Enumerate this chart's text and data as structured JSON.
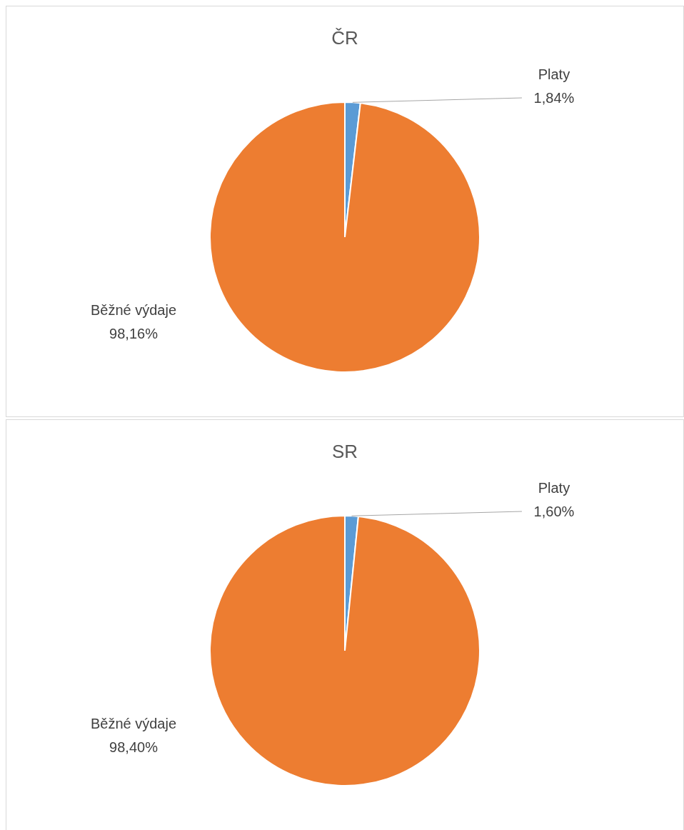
{
  "chart_data": [
    {
      "type": "pie",
      "title": "ČR",
      "categories": [
        "Platy",
        "Běžné výdaje"
      ],
      "values": [
        1.84,
        98.16
      ],
      "colors": [
        "#5b9bd5",
        "#ed7d31"
      ],
      "value_labels": [
        "1,84%",
        "98,16%"
      ],
      "legend": false
    },
    {
      "type": "pie",
      "title": "SR",
      "categories": [
        "Platy",
        "Běžné výdaje"
      ],
      "values": [
        1.6,
        98.4
      ],
      "colors": [
        "#5b9bd5",
        "#ed7d31"
      ],
      "value_labels": [
        "1,60%",
        "98,40%"
      ],
      "legend": false
    }
  ]
}
